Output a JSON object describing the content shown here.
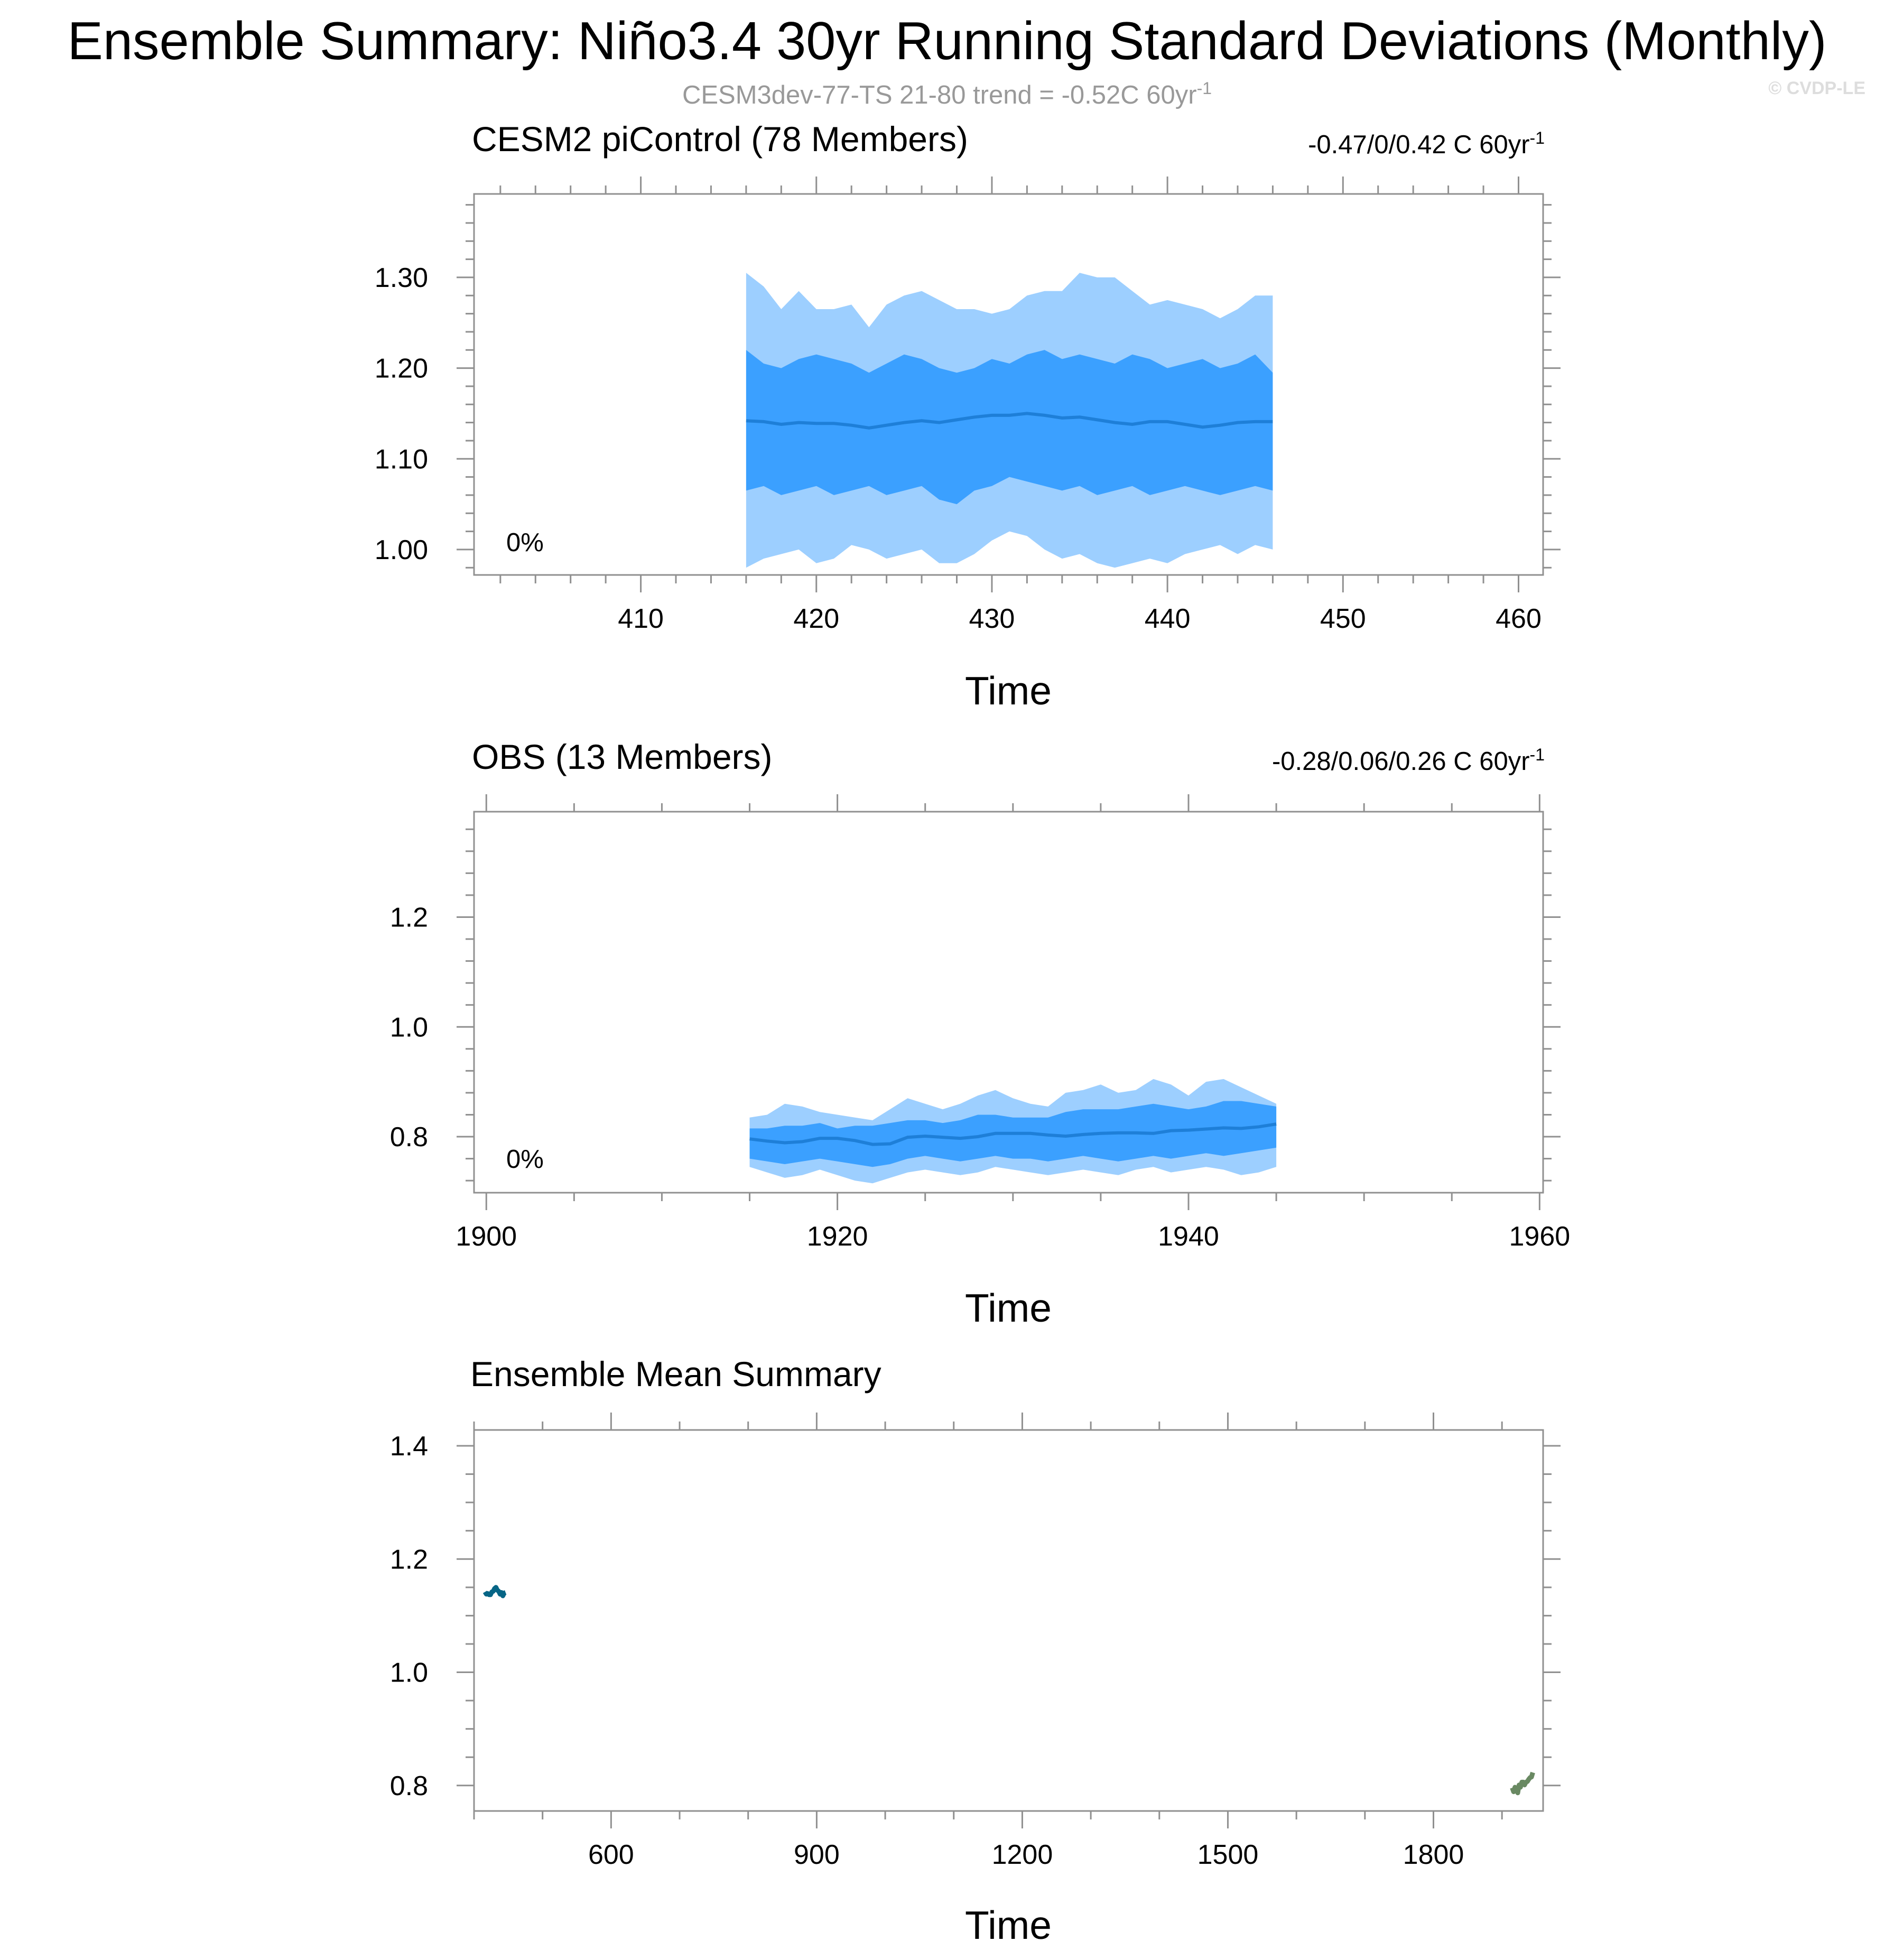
{
  "header": {
    "title": "Ensemble Summary: Niño3.4 30yr Running Standard Deviations (Monthly)",
    "subtitle": "CESM3dev-77-TS 21-80 trend = -0.52C 60yr",
    "subtitle_sup": "-1",
    "copyright": "© CVDP-LE"
  },
  "colors": {
    "band_outer": "#9dcfff",
    "band_inner": "#3ba0ff",
    "mean_line": "#1e7fd8",
    "cesm2": "#066586",
    "obs": "#698962"
  },
  "chart_data": [
    {
      "type": "area",
      "title": "CESM2 piControl (78 Members)",
      "trend_label": "-0.47/0/0.42 C 60yr",
      "trend_sup": "-1",
      "percent_label": "0%",
      "xlabel": "Time",
      "ylabel": "",
      "xlim": [
        400.5,
        461.4
      ],
      "ylim": [
        0.972,
        1.392
      ],
      "xticks": [
        410,
        420,
        430,
        440,
        450,
        460
      ],
      "xtick_labels": [
        "410",
        "420",
        "430",
        "440",
        "450",
        "460"
      ],
      "yticks": [
        1.0,
        1.1,
        1.2,
        1.3
      ],
      "ytick_labels": [
        "1.00",
        "1.10",
        "1.20",
        "1.30"
      ],
      "x": [
        416,
        417,
        418,
        419,
        420,
        421,
        422,
        423,
        424,
        425,
        426,
        427,
        428,
        429,
        430,
        431,
        432,
        433,
        434,
        435,
        436,
        437,
        438,
        439,
        440,
        441,
        442,
        443,
        444,
        445,
        446
      ],
      "series": [
        {
          "name": "",
          "role": "max",
          "values": [
            1.305,
            1.29,
            1.265,
            1.285,
            1.265,
            1.265,
            1.27,
            1.245,
            1.27,
            1.28,
            1.285,
            1.275,
            1.265,
            1.265,
            1.26,
            1.265,
            1.28,
            1.285,
            1.285,
            1.305,
            1.3,
            1.3,
            1.285,
            1.27,
            1.275,
            1.27,
            1.265,
            1.255,
            1.265,
            1.28,
            1.28
          ]
        },
        {
          "name": "",
          "role": "p90",
          "values": [
            1.22,
            1.205,
            1.2,
            1.21,
            1.215,
            1.21,
            1.205,
            1.195,
            1.205,
            1.215,
            1.21,
            1.2,
            1.195,
            1.2,
            1.21,
            1.205,
            1.215,
            1.22,
            1.21,
            1.215,
            1.21,
            1.205,
            1.215,
            1.21,
            1.2,
            1.205,
            1.21,
            1.2,
            1.205,
            1.215,
            1.195
          ]
        },
        {
          "name": "",
          "role": "mean",
          "values": [
            1.142,
            1.141,
            1.138,
            1.14,
            1.139,
            1.139,
            1.137,
            1.134,
            1.137,
            1.14,
            1.142,
            1.14,
            1.143,
            1.146,
            1.148,
            1.148,
            1.15,
            1.148,
            1.145,
            1.146,
            1.143,
            1.14,
            1.138,
            1.141,
            1.141,
            1.138,
            1.135,
            1.137,
            1.14,
            1.141,
            1.141
          ]
        },
        {
          "name": "",
          "role": "p10",
          "values": [
            1.065,
            1.07,
            1.06,
            1.065,
            1.07,
            1.06,
            1.065,
            1.07,
            1.06,
            1.065,
            1.07,
            1.055,
            1.05,
            1.065,
            1.07,
            1.08,
            1.075,
            1.07,
            1.065,
            1.07,
            1.06,
            1.065,
            1.07,
            1.06,
            1.065,
            1.07,
            1.065,
            1.06,
            1.065,
            1.07,
            1.065
          ]
        },
        {
          "name": "",
          "role": "min",
          "values": [
            0.98,
            0.99,
            0.995,
            1.0,
            0.985,
            0.99,
            1.005,
            1.0,
            0.99,
            0.995,
            1.0,
            0.985,
            0.985,
            0.995,
            1.01,
            1.02,
            1.015,
            1.0,
            0.99,
            0.995,
            0.985,
            0.98,
            0.985,
            0.99,
            0.985,
            0.995,
            1.0,
            1.005,
            0.995,
            1.005,
            1.0
          ]
        }
      ]
    },
    {
      "type": "area",
      "title": "OBS (13 Members)",
      "trend_label": "-0.28/0.06/0.26 C 60yr",
      "trend_sup": "-1",
      "percent_label": "0%",
      "xlabel": "Time",
      "ylabel": "",
      "xlim": [
        1899.3,
        1960.2
      ],
      "ylim": [
        0.698,
        1.392
      ],
      "xticks": [
        1900,
        1920,
        1940,
        1960
      ],
      "xtick_labels": [
        "1900",
        "1920",
        "1940",
        "1960"
      ],
      "yticks": [
        0.8,
        1.0,
        1.2
      ],
      "ytick_labels": [
        "0.8",
        "1.0",
        "1.2"
      ],
      "x": [
        1915,
        1916,
        1917,
        1918,
        1919,
        1920,
        1921,
        1922,
        1923,
        1924,
        1925,
        1926,
        1927,
        1928,
        1929,
        1930,
        1931,
        1932,
        1933,
        1934,
        1935,
        1936,
        1937,
        1938,
        1939,
        1940,
        1941,
        1942,
        1943,
        1944,
        1945
      ],
      "series": [
        {
          "name": "",
          "role": "max",
          "values": [
            0.835,
            0.84,
            0.86,
            0.855,
            0.845,
            0.84,
            0.835,
            0.83,
            0.85,
            0.87,
            0.86,
            0.85,
            0.86,
            0.875,
            0.885,
            0.87,
            0.86,
            0.855,
            0.88,
            0.885,
            0.895,
            0.88,
            0.885,
            0.905,
            0.895,
            0.875,
            0.9,
            0.905,
            0.89,
            0.875,
            0.86
          ]
        },
        {
          "name": "",
          "role": "p90",
          "values": [
            0.815,
            0.815,
            0.82,
            0.82,
            0.825,
            0.815,
            0.82,
            0.82,
            0.825,
            0.83,
            0.83,
            0.825,
            0.83,
            0.84,
            0.84,
            0.835,
            0.835,
            0.835,
            0.845,
            0.85,
            0.85,
            0.85,
            0.855,
            0.86,
            0.855,
            0.85,
            0.855,
            0.865,
            0.865,
            0.86,
            0.855
          ]
        },
        {
          "name": "",
          "role": "mean",
          "values": [
            0.796,
            0.792,
            0.789,
            0.791,
            0.797,
            0.797,
            0.793,
            0.786,
            0.787,
            0.799,
            0.801,
            0.799,
            0.797,
            0.8,
            0.806,
            0.806,
            0.806,
            0.803,
            0.801,
            0.804,
            0.806,
            0.807,
            0.807,
            0.806,
            0.811,
            0.812,
            0.814,
            0.816,
            0.815,
            0.818,
            0.823
          ]
        },
        {
          "name": "",
          "role": "p10",
          "values": [
            0.76,
            0.755,
            0.75,
            0.755,
            0.76,
            0.755,
            0.75,
            0.745,
            0.75,
            0.76,
            0.765,
            0.76,
            0.755,
            0.76,
            0.765,
            0.76,
            0.76,
            0.755,
            0.76,
            0.765,
            0.76,
            0.755,
            0.76,
            0.765,
            0.76,
            0.765,
            0.77,
            0.765,
            0.77,
            0.775,
            0.78
          ]
        },
        {
          "name": "",
          "role": "min",
          "values": [
            0.745,
            0.735,
            0.725,
            0.73,
            0.74,
            0.73,
            0.72,
            0.715,
            0.725,
            0.735,
            0.74,
            0.735,
            0.73,
            0.735,
            0.745,
            0.74,
            0.735,
            0.73,
            0.735,
            0.74,
            0.735,
            0.73,
            0.74,
            0.745,
            0.735,
            0.74,
            0.745,
            0.74,
            0.73,
            0.735,
            0.745
          ]
        }
      ]
    },
    {
      "type": "line",
      "title": "Ensemble Mean Summary",
      "xlabel": "Time",
      "ylabel": "",
      "xlim": [
        400,
        1960
      ],
      "ylim": [
        0.755,
        1.428
      ],
      "xticks": [
        600,
        900,
        1200,
        1500,
        1800
      ],
      "xtick_labels": [
        "600",
        "900",
        "1200",
        "1500",
        "1800"
      ],
      "yticks": [
        0.8,
        1.0,
        1.2,
        1.4
      ],
      "ytick_labels": [
        "0.8",
        "1.0",
        "1.2",
        "1.4"
      ],
      "series": [
        {
          "name": "",
          "color_key": "cesm2",
          "x": [
            416,
            418,
            420,
            422,
            424,
            426,
            428,
            430,
            432,
            434,
            436,
            438,
            440,
            442,
            444,
            446
          ],
          "values": [
            1.142,
            1.138,
            1.139,
            1.137,
            1.137,
            1.142,
            1.143,
            1.148,
            1.15,
            1.145,
            1.143,
            1.138,
            1.141,
            1.135,
            1.14,
            1.141
          ]
        },
        {
          "name": "",
          "color_key": "obs",
          "x": [
            1915,
            1917,
            1919,
            1921,
            1923,
            1925,
            1927,
            1929,
            1931,
            1933,
            1935,
            1937,
            1939,
            1941,
            1943,
            1945
          ],
          "values": [
            0.796,
            0.789,
            0.797,
            0.793,
            0.787,
            0.801,
            0.797,
            0.806,
            0.806,
            0.801,
            0.806,
            0.807,
            0.811,
            0.814,
            0.815,
            0.823
          ]
        }
      ]
    }
  ]
}
